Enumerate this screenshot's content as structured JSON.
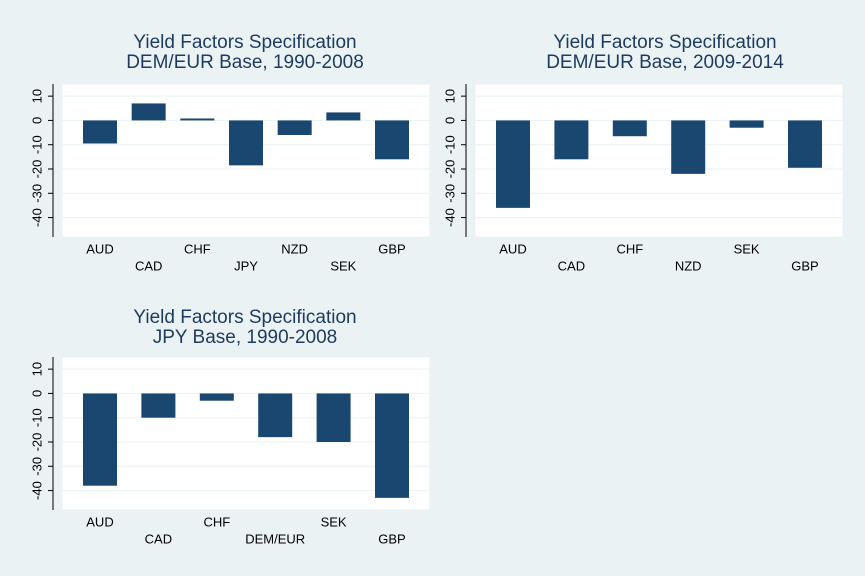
{
  "chart_data": [
    {
      "type": "bar",
      "title": "Yield Factors Specification",
      "subtitle": "DEM/EUR Base, 1990-2008",
      "categories": [
        "AUD",
        "CAD",
        "CHF",
        "JPY",
        "NZD",
        "SEK",
        "GBP"
      ],
      "values": [
        -9.5,
        7,
        0.8,
        -18.5,
        -6,
        3.3,
        -16
      ],
      "color": "#1a476f",
      "ylim": [
        -48,
        15
      ],
      "yticks": [
        10,
        0,
        -10,
        -20,
        -30,
        -40
      ],
      "grid": true
    },
    {
      "type": "bar",
      "title": "Yield Factors Specification",
      "subtitle": "DEM/EUR Base, 2009-2014",
      "categories": [
        "AUD",
        "CAD",
        "CHF",
        "NZD",
        "SEK",
        "GBP"
      ],
      "values": [
        -36,
        -16,
        -6.5,
        -22,
        -3,
        -19.5
      ],
      "color": "#1a476f",
      "ylim": [
        -48,
        15
      ],
      "yticks": [
        10,
        0,
        -10,
        -20,
        -30,
        -40
      ],
      "grid": true
    },
    {
      "type": "bar",
      "title": "Yield Factors Specification",
      "subtitle": "JPY Base, 1990-2008",
      "categories": [
        "AUD",
        "CAD",
        "CHF",
        "DEM/EUR",
        "SEK",
        "GBP"
      ],
      "values": [
        -38,
        -10,
        -3,
        -18,
        -20,
        -43
      ],
      "color": "#1a476f",
      "ylim": [
        -48,
        15
      ],
      "yticks": [
        10,
        0,
        -10,
        -20,
        -30,
        -40
      ],
      "grid": true
    }
  ]
}
